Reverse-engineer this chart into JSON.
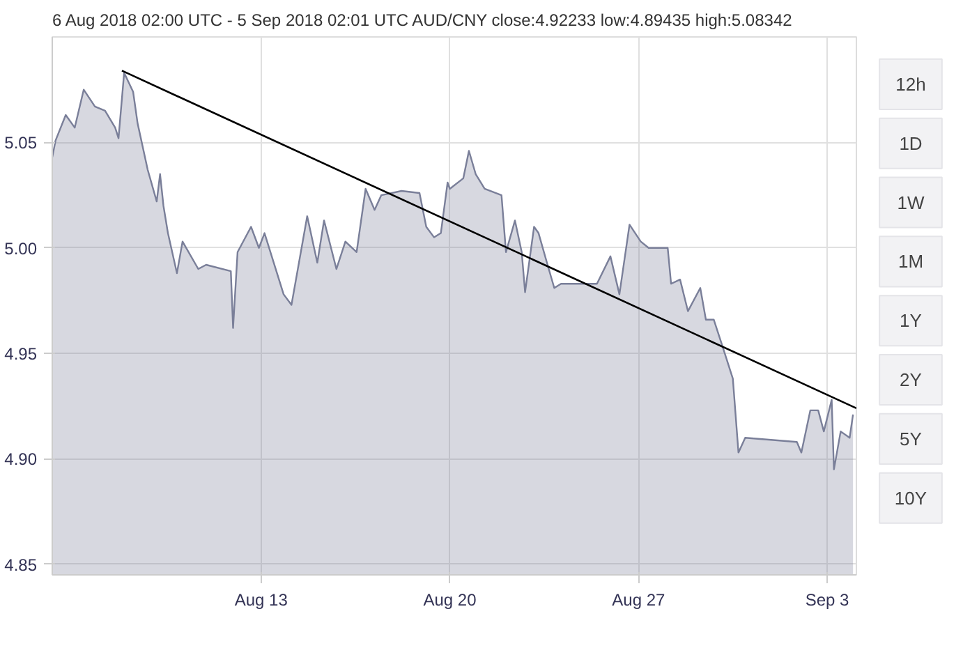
{
  "chart_data": {
    "type": "area",
    "title": "6 Aug 2018 02:00 UTC - 5 Sep 2018 02:01 UTC   AUD/CNY close:4.92233 low:4.89435 high:5.08342",
    "annotations": [
      "12h",
      "1D",
      "1W",
      "1M",
      "1Y",
      "2Y",
      "5Y",
      "10Y"
    ],
    "xlim": [
      "2018-08-05T06:00",
      "2018-09-04T02:00"
    ],
    "xticks": [
      {
        "value": "2018-08-13",
        "label": "Aug 13"
      },
      {
        "value": "2018-08-20",
        "label": "Aug 20"
      },
      {
        "value": "2018-08-27",
        "label": "Aug 27"
      },
      {
        "value": "2018-09-03",
        "label": "Sep 3"
      }
    ],
    "ylim": [
      4.845,
      5.1
    ],
    "yticks": [
      {
        "value": 4.85,
        "label": "4.85"
      },
      {
        "value": 4.9,
        "label": "4.90"
      },
      {
        "value": 4.95,
        "label": "4.95"
      },
      {
        "value": 5.0,
        "label": "5.00"
      },
      {
        "value": 5.05,
        "label": "5.05"
      }
    ],
    "grid": true,
    "series": [
      {
        "color": "#7a7f99",
        "x": [
          "2018-08-05T06:00",
          "2018-08-05T09:00",
          "2018-08-05T18:00",
          "2018-08-06T02:00",
          "2018-08-06T10:00",
          "2018-08-06T20:00",
          "2018-08-07T05:00",
          "2018-08-07T14:00",
          "2018-08-07T17:00",
          "2018-08-07T22:00",
          "2018-08-08T06:00",
          "2018-08-08T10:00",
          "2018-08-08T19:00",
          "2018-08-09T03:00",
          "2018-08-09T06:00",
          "2018-08-09T09:00",
          "2018-08-09T13:00",
          "2018-08-09T21:00",
          "2018-08-10T02:00",
          "2018-08-10T16:00",
          "2018-08-10T23:00",
          "2018-08-11T21:00",
          "2018-08-11T23:00",
          "2018-08-12T03:00",
          "2018-08-12T15:00",
          "2018-08-12T22:00",
          "2018-08-13T03:00",
          "2018-08-13T20:00",
          "2018-08-14T03:00",
          "2018-08-14T17:00",
          "2018-08-15T02:00",
          "2018-08-15T08:00",
          "2018-08-15T19:00",
          "2018-08-16T03:00",
          "2018-08-16T13:00",
          "2018-08-16T21:00",
          "2018-08-17T05:00",
          "2018-08-17T11:00",
          "2018-08-18T05:00",
          "2018-08-18T21:00",
          "2018-08-19T03:00",
          "2018-08-19T10:00",
          "2018-08-19T16:00",
          "2018-08-19T22:00",
          "2018-08-20T00:00",
          "2018-08-20T12:00",
          "2018-08-20T17:00",
          "2018-08-20T23:00",
          "2018-08-21T07:00",
          "2018-08-21T22:00",
          "2018-08-22T02:00",
          "2018-08-22T10:00",
          "2018-08-22T16:00",
          "2018-08-22T19:00",
          "2018-08-23T03:00",
          "2018-08-23T07:00",
          "2018-08-23T15:00",
          "2018-08-23T21:00",
          "2018-08-24T03:00",
          "2018-08-25T11:00",
          "2018-08-25T23:00",
          "2018-08-26T07:00",
          "2018-08-26T16:00",
          "2018-08-27T02:00",
          "2018-08-27T09:00",
          "2018-08-28T02:00",
          "2018-08-28T05:00",
          "2018-08-28T13:00",
          "2018-08-28T20:00",
          "2018-08-29T07:00",
          "2018-08-29T12:00",
          "2018-08-29T19:00",
          "2018-08-30T03:00",
          "2018-08-30T12:00",
          "2018-08-30T17:00",
          "2018-08-30T23:00",
          "2018-09-01T21:00",
          "2018-09-02T01:00",
          "2018-09-02T09:00",
          "2018-09-02T16:00",
          "2018-09-02T21:00",
          "2018-09-03T04:00",
          "2018-09-03T06:00",
          "2018-09-03T12:00",
          "2018-09-03T20:00",
          "2018-09-03T23:00"
        ],
        "values": [
          5.043,
          5.051,
          5.063,
          5.057,
          5.075,
          5.067,
          5.065,
          5.057,
          5.052,
          5.083,
          5.074,
          5.059,
          5.037,
          5.022,
          5.035,
          5.02,
          5.007,
          4.988,
          5.003,
          4.99,
          4.992,
          4.989,
          4.962,
          4.998,
          5.01,
          5.0,
          5.007,
          4.978,
          4.973,
          5.015,
          4.993,
          5.013,
          4.99,
          5.003,
          4.998,
          5.028,
          5.018,
          5.025,
          5.027,
          5.026,
          5.01,
          5.005,
          5.007,
          5.031,
          5.028,
          5.033,
          5.046,
          5.035,
          5.028,
          5.025,
          4.998,
          5.013,
          4.998,
          4.979,
          5.01,
          5.007,
          4.992,
          4.981,
          4.983,
          4.983,
          4.996,
          4.978,
          5.011,
          5.003,
          5.0,
          5.0,
          4.983,
          4.985,
          4.97,
          4.981,
          4.966,
          4.966,
          4.953,
          4.938,
          4.903,
          4.91,
          4.908,
          4.903,
          4.923,
          4.923,
          4.913,
          4.928,
          4.895,
          4.913,
          4.91,
          4.921
        ]
      },
      {
        "type": "line",
        "color": "#000000",
        "x": [
          "2018-08-07T20:00",
          "2018-09-04T02:00"
        ],
        "values": [
          5.084,
          4.924
        ]
      }
    ]
  }
}
